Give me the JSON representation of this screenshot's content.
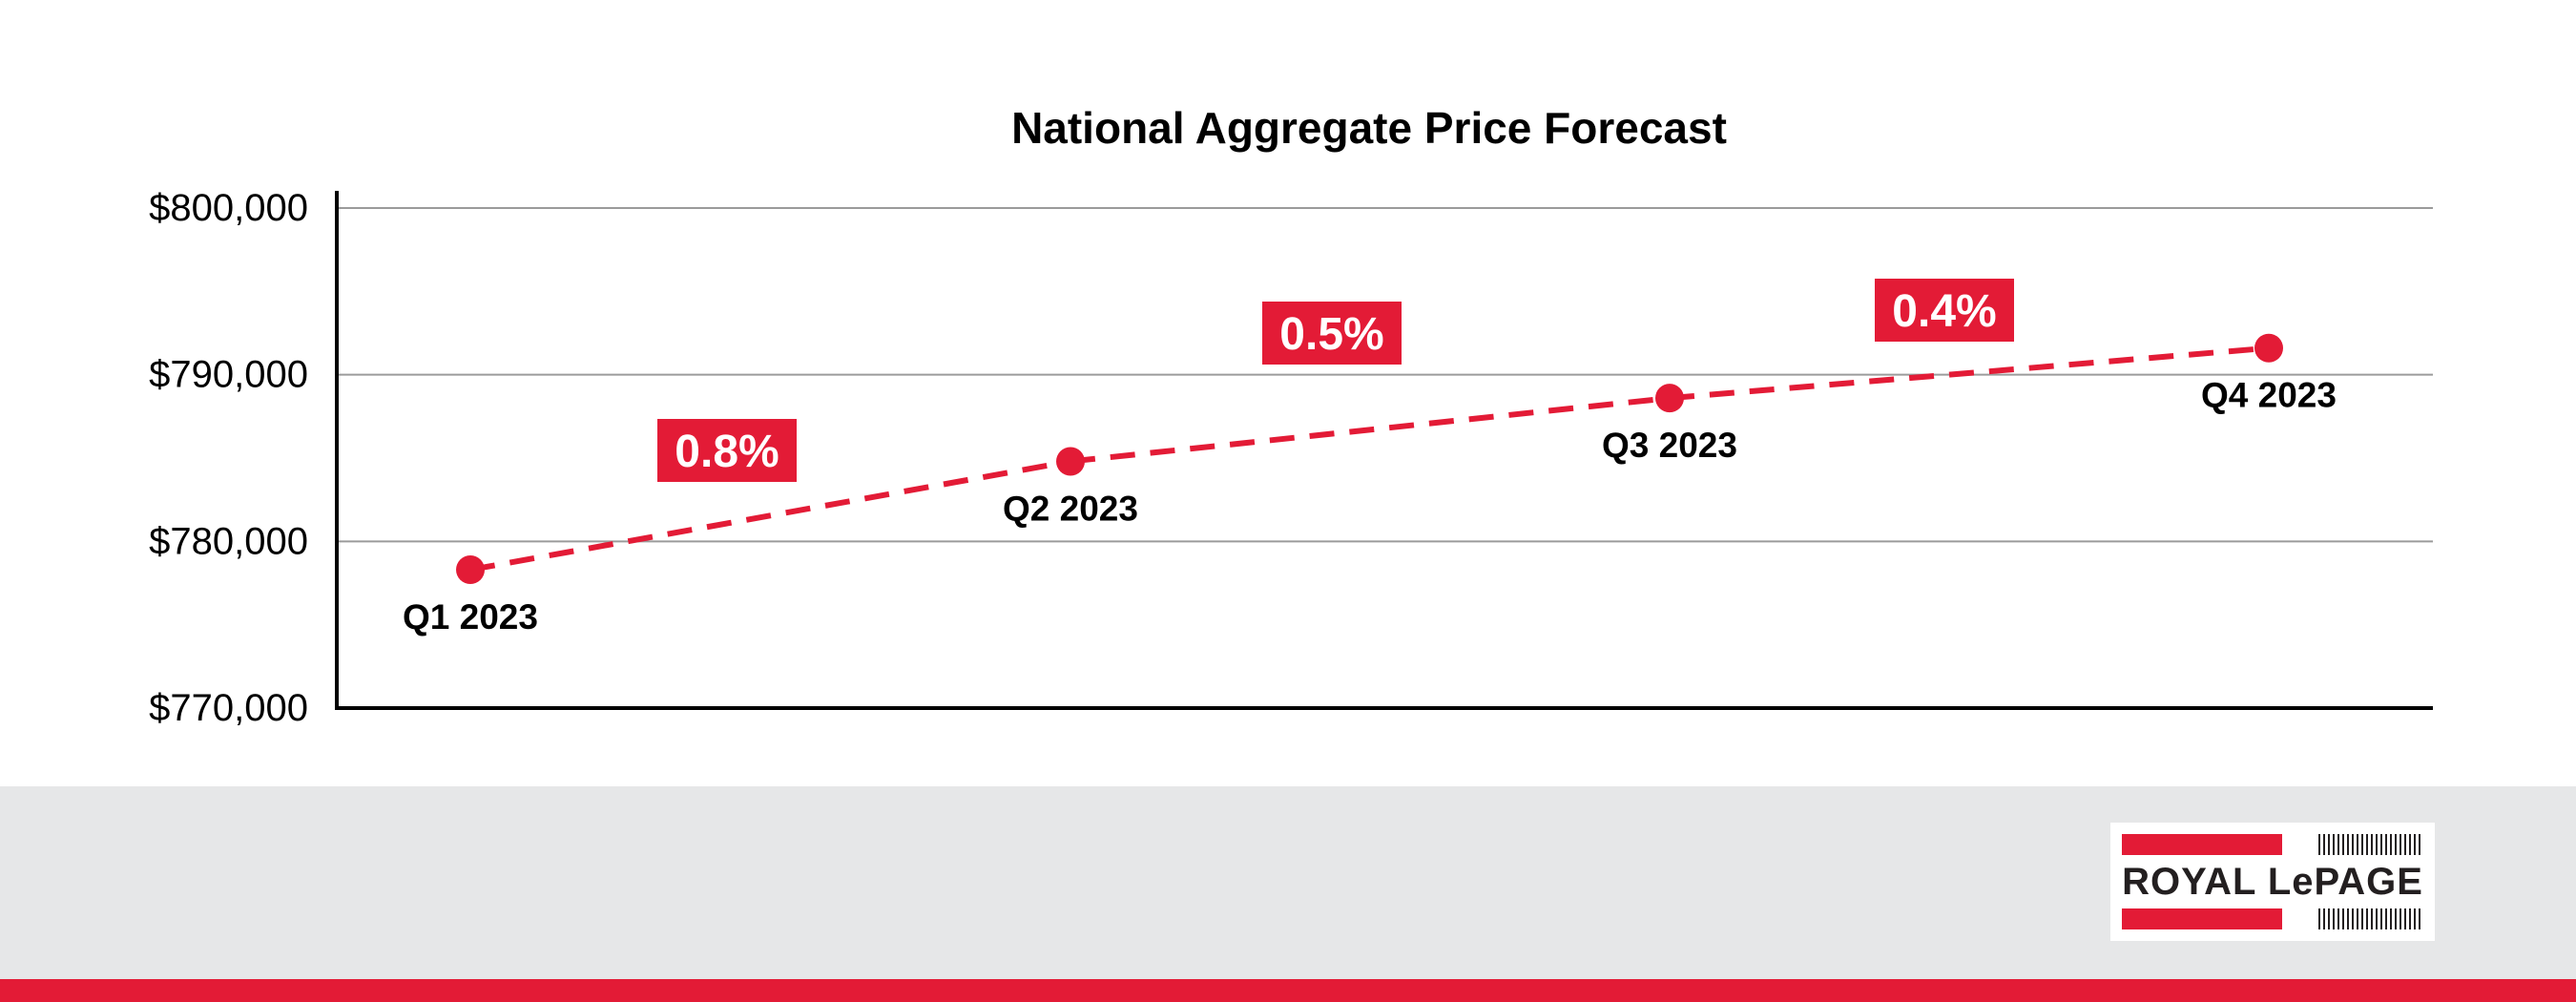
{
  "colors": {
    "accent": "#e31b36",
    "axis": "#000000",
    "grid": "#9b9b9b",
    "footer_band": "#e6e7e8",
    "text": "#000000"
  },
  "chart_data": {
    "type": "line",
    "title": "National Aggregate Price Forecast",
    "xlabel": "",
    "ylabel": "",
    "ylim": [
      770000,
      800000
    ],
    "yticks": [
      770000,
      780000,
      790000,
      800000
    ],
    "ytick_labels": [
      "$770,000",
      "$780,000",
      "$790,000",
      "$800,000"
    ],
    "grid": true,
    "line_style": "dashed",
    "categories": [
      "Q1 2023",
      "Q2 2023",
      "Q3 2023",
      "Q4 2023"
    ],
    "values": [
      778300,
      784800,
      788600,
      791600
    ],
    "annotations": [
      "0.8%",
      "0.5%",
      "0.4%"
    ]
  },
  "logo": {
    "text": "ROYAL LePAGE"
  }
}
